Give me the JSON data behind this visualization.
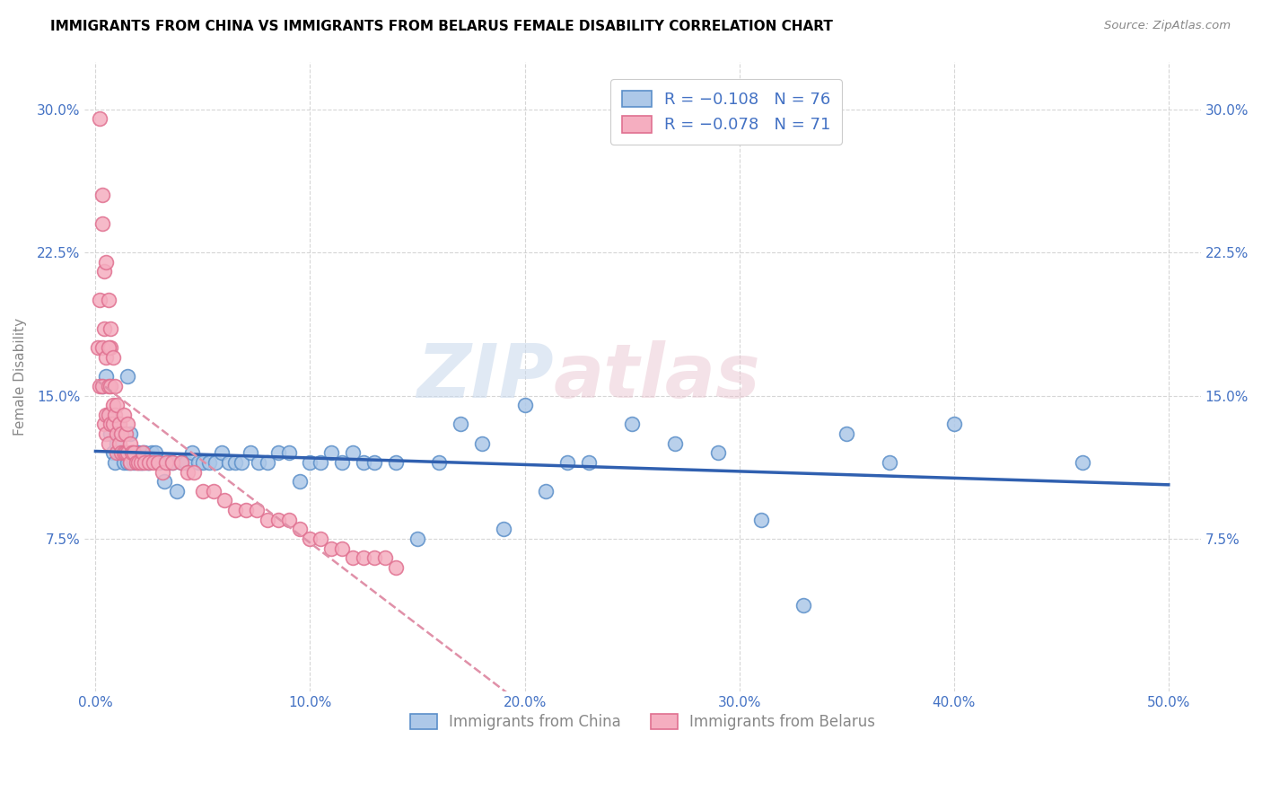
{
  "title": "IMMIGRANTS FROM CHINA VS IMMIGRANTS FROM BELARUS FEMALE DISABILITY CORRELATION CHART",
  "source": "Source: ZipAtlas.com",
  "ylabel": "Female Disability",
  "x_tick_labels": [
    "0.0%",
    "10.0%",
    "20.0%",
    "30.0%",
    "40.0%",
    "50.0%"
  ],
  "x_tick_vals": [
    0.0,
    0.1,
    0.2,
    0.3,
    0.4,
    0.5
  ],
  "y_tick_labels": [
    "7.5%",
    "15.0%",
    "22.5%",
    "30.0%"
  ],
  "y_tick_vals": [
    0.075,
    0.15,
    0.225,
    0.3
  ],
  "xlim": [
    -0.005,
    0.515
  ],
  "ylim": [
    -0.005,
    0.325
  ],
  "legend_china_label": "Immigrants from China",
  "legend_belarus_label": "Immigrants from Belarus",
  "legend_china_R": "-0.108",
  "legend_china_N": "76",
  "legend_belarus_R": "-0.078",
  "legend_belarus_N": "71",
  "china_color": "#adc8e8",
  "belarus_color": "#f5aec0",
  "china_edge_color": "#5b8fc9",
  "belarus_edge_color": "#e07090",
  "china_line_color": "#3060b0",
  "belarus_line_color": "#e090a8",
  "watermark_color": "#d8e4f0",
  "watermark_color2": "#f0d0dc",
  "background_color": "#ffffff",
  "grid_color": "#cccccc",
  "china_scatter_x": [
    0.003,
    0.005,
    0.006,
    0.007,
    0.008,
    0.009,
    0.01,
    0.011,
    0.012,
    0.013,
    0.014,
    0.015,
    0.015,
    0.016,
    0.016,
    0.017,
    0.018,
    0.019,
    0.02,
    0.02,
    0.021,
    0.022,
    0.022,
    0.023,
    0.024,
    0.025,
    0.026,
    0.028,
    0.03,
    0.032,
    0.034,
    0.036,
    0.038,
    0.04,
    0.042,
    0.045,
    0.048,
    0.05,
    0.053,
    0.056,
    0.059,
    0.062,
    0.065,
    0.068,
    0.072,
    0.076,
    0.08,
    0.085,
    0.09,
    0.095,
    0.1,
    0.105,
    0.11,
    0.115,
    0.12,
    0.125,
    0.13,
    0.14,
    0.15,
    0.16,
    0.17,
    0.18,
    0.19,
    0.2,
    0.21,
    0.22,
    0.23,
    0.25,
    0.27,
    0.29,
    0.31,
    0.33,
    0.35,
    0.37,
    0.4,
    0.46
  ],
  "china_scatter_y": [
    0.155,
    0.16,
    0.14,
    0.13,
    0.12,
    0.115,
    0.125,
    0.12,
    0.12,
    0.115,
    0.12,
    0.115,
    0.16,
    0.13,
    0.115,
    0.12,
    0.115,
    0.12,
    0.115,
    0.12,
    0.115,
    0.12,
    0.115,
    0.12,
    0.115,
    0.115,
    0.12,
    0.12,
    0.115,
    0.105,
    0.115,
    0.115,
    0.1,
    0.115,
    0.115,
    0.12,
    0.115,
    0.115,
    0.115,
    0.115,
    0.12,
    0.115,
    0.115,
    0.115,
    0.12,
    0.115,
    0.115,
    0.12,
    0.12,
    0.105,
    0.115,
    0.115,
    0.12,
    0.115,
    0.12,
    0.115,
    0.115,
    0.115,
    0.075,
    0.115,
    0.135,
    0.125,
    0.08,
    0.145,
    0.1,
    0.115,
    0.115,
    0.135,
    0.125,
    0.12,
    0.085,
    0.04,
    0.13,
    0.115,
    0.135,
    0.115
  ],
  "belarus_scatter_x": [
    0.001,
    0.002,
    0.002,
    0.003,
    0.003,
    0.003,
    0.004,
    0.004,
    0.005,
    0.005,
    0.005,
    0.006,
    0.006,
    0.006,
    0.007,
    0.007,
    0.007,
    0.008,
    0.008,
    0.009,
    0.009,
    0.01,
    0.01,
    0.01,
    0.011,
    0.011,
    0.012,
    0.012,
    0.013,
    0.013,
    0.014,
    0.014,
    0.015,
    0.015,
    0.016,
    0.016,
    0.017,
    0.018,
    0.019,
    0.02,
    0.021,
    0.022,
    0.023,
    0.025,
    0.027,
    0.029,
    0.031,
    0.033,
    0.036,
    0.04,
    0.043,
    0.046,
    0.05,
    0.055,
    0.06,
    0.065,
    0.07,
    0.075,
    0.08,
    0.085,
    0.09,
    0.095,
    0.1,
    0.105,
    0.11,
    0.115,
    0.12,
    0.125,
    0.13,
    0.135,
    0.14
  ],
  "belarus_scatter_y": [
    0.175,
    0.155,
    0.2,
    0.175,
    0.155,
    0.24,
    0.135,
    0.185,
    0.14,
    0.17,
    0.13,
    0.14,
    0.155,
    0.125,
    0.135,
    0.155,
    0.175,
    0.135,
    0.145,
    0.14,
    0.155,
    0.13,
    0.145,
    0.12,
    0.135,
    0.125,
    0.13,
    0.12,
    0.12,
    0.14,
    0.13,
    0.12,
    0.12,
    0.135,
    0.125,
    0.115,
    0.12,
    0.12,
    0.115,
    0.115,
    0.115,
    0.12,
    0.115,
    0.115,
    0.115,
    0.115,
    0.11,
    0.115,
    0.115,
    0.115,
    0.11,
    0.11,
    0.1,
    0.1,
    0.095,
    0.09,
    0.09,
    0.09,
    0.085,
    0.085,
    0.085,
    0.08,
    0.075,
    0.075,
    0.07,
    0.07,
    0.065,
    0.065,
    0.065,
    0.065,
    0.06
  ],
  "belarus_high_x": [
    0.002,
    0.003,
    0.004,
    0.005,
    0.006,
    0.006,
    0.007,
    0.008
  ],
  "belarus_high_y": [
    0.295,
    0.255,
    0.215,
    0.22,
    0.2,
    0.175,
    0.185,
    0.17
  ]
}
